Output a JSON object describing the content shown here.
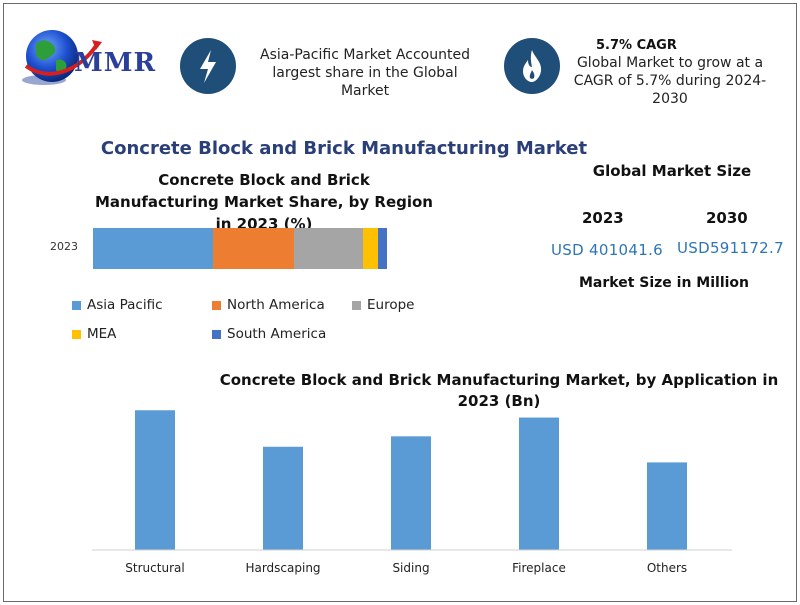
{
  "header": {
    "logo_text": "MMR",
    "info1": {
      "icon": "lightning-icon",
      "text": "Asia-Pacific Market Accounted largest share in the Global Market"
    },
    "info2": {
      "icon": "flame-icon",
      "title": "5.7% CAGR",
      "text": "Global Market to grow at a CAGR of 5.7% during 2024-2030"
    }
  },
  "main_title": "Concrete Block and Brick Manufacturing  Market",
  "global_market_size": {
    "title": "Global Market Size",
    "year_a": "2023",
    "value_a": "USD 401041.6",
    "year_b": "2030",
    "value_b": "USD591172.7",
    "unit": "Market Size in Million"
  },
  "chart_data": [
    {
      "type": "bar",
      "orientation": "horizontal-stacked",
      "title": "Concrete Block and Brick Manufacturing Market Share, by Region in 2023 (%)",
      "categories": [
        "2023"
      ],
      "series": [
        {
          "name": "Asia Pacific",
          "values": [
            40
          ],
          "color": "#5b9bd5"
        },
        {
          "name": "North America",
          "values": [
            27
          ],
          "color": "#ed7d31"
        },
        {
          "name": "Europe",
          "values": [
            23
          ],
          "color": "#a5a5a5"
        },
        {
          "name": "MEA",
          "values": [
            5
          ],
          "color": "#ffc000"
        },
        {
          "name": "South America",
          "values": [
            3
          ],
          "color": "#4472c4"
        }
      ],
      "xlim": [
        0,
        100
      ],
      "legend": "bottom"
    },
    {
      "type": "bar",
      "title": "Concrete Block and Brick Manufacturing Market, by Application in 2023 (Bn)",
      "categories": [
        "Structural",
        "Hardscaping",
        "Siding",
        "Fireplace",
        "Others"
      ],
      "values": [
        134,
        99,
        109,
        127,
        84
      ],
      "color": "#5b9bd5",
      "ylim": [
        0,
        140
      ],
      "grid": false,
      "axis_labels_shown": false
    }
  ]
}
